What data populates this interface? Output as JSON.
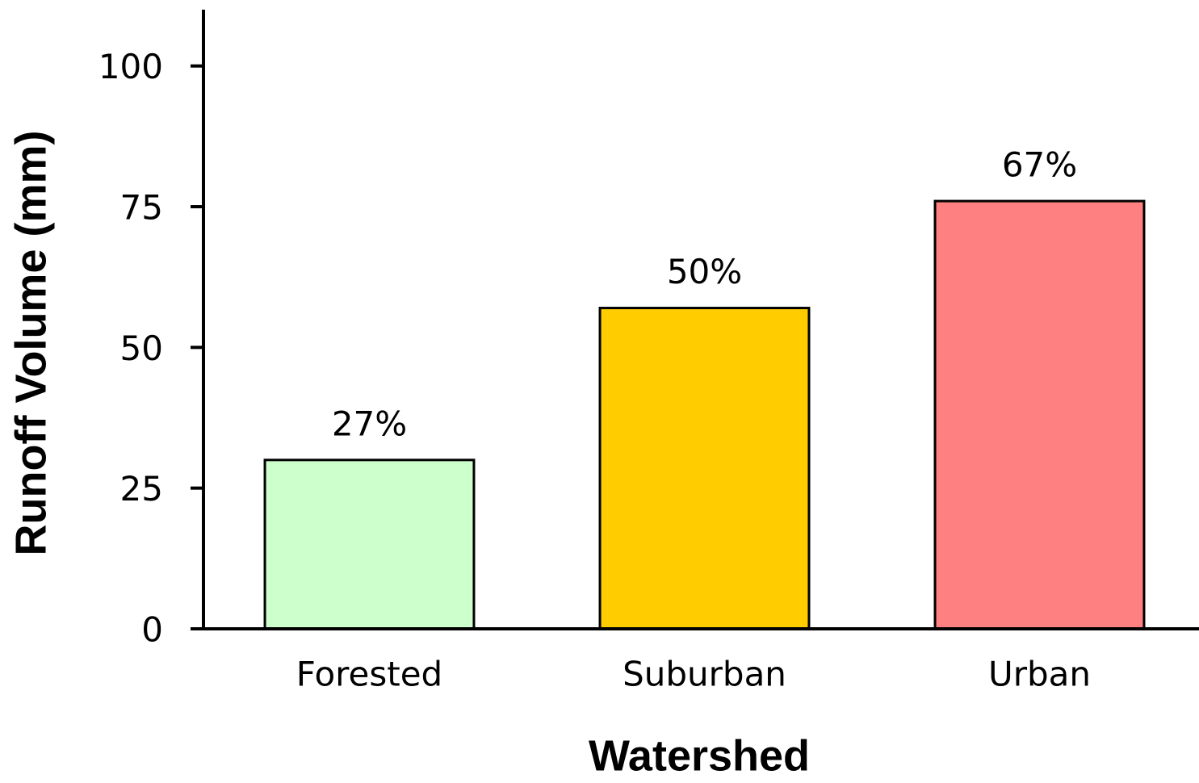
{
  "chart_data": {
    "type": "bar",
    "x_label": "Watershed",
    "y_label": "Runoff  Volume  (mm)",
    "categories": [
      "Forested",
      "Suburban",
      "Urban"
    ],
    "values": [
      30,
      57,
      76
    ],
    "bar_annotations": [
      "27%",
      "50%",
      "67%"
    ],
    "colors": [
      "#ccffcc",
      "#ffcc00",
      "#ff8080"
    ],
    "ylim": [
      0,
      110
    ],
    "yticks": [
      0,
      25,
      50,
      75,
      100
    ],
    "grid": false
  }
}
